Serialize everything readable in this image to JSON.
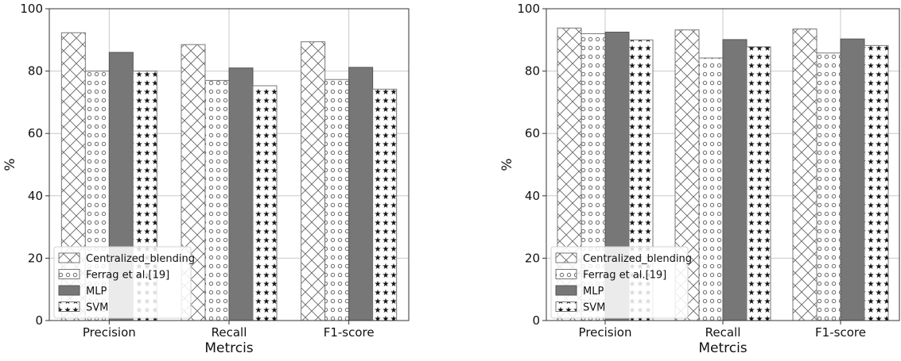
{
  "chart_data": [
    {
      "type": "bar",
      "title": "",
      "xlabel": "Metrcis",
      "ylabel": "%",
      "ylim": [
        0,
        100
      ],
      "yticks": [
        "0",
        "20",
        "40",
        "60",
        "80",
        "100"
      ],
      "grid": true,
      "legend_position": "lower-left",
      "categories": [
        "Precision",
        "Recall",
        "F1-score"
      ],
      "series": [
        {
          "name": "Centralized_blending",
          "pattern": "crosshatch",
          "color": "#555555",
          "values": [
            92.3,
            88.5,
            89.4
          ]
        },
        {
          "name": "Ferrag et al.[19]",
          "pattern": "circles",
          "color": "#555555",
          "values": [
            80.0,
            77.0,
            77.3
          ]
        },
        {
          "name": "MLP",
          "pattern": "solid",
          "color": "#777777",
          "values": [
            86.0,
            81.0,
            81.2
          ]
        },
        {
          "name": "SVM",
          "pattern": "stars",
          "color": "#555555",
          "values": [
            80.0,
            75.3,
            74.2
          ]
        }
      ]
    },
    {
      "type": "bar",
      "title": "",
      "xlabel": "Metrcis",
      "ylabel": "%",
      "ylim": [
        0,
        100
      ],
      "yticks": [
        "0",
        "20",
        "40",
        "60",
        "80",
        "100"
      ],
      "grid": true,
      "legend_position": "lower-left",
      "categories": [
        "Precision",
        "Recall",
        "F1-score"
      ],
      "series": [
        {
          "name": "Centralized_blending",
          "pattern": "crosshatch",
          "color": "#555555",
          "values": [
            93.8,
            93.2,
            93.5
          ]
        },
        {
          "name": "Ferrag et al.[19]",
          "pattern": "circles",
          "color": "#555555",
          "values": [
            92.0,
            84.2,
            85.8
          ]
        },
        {
          "name": "MLP",
          "pattern": "solid",
          "color": "#777777",
          "values": [
            92.5,
            90.1,
            90.3
          ]
        },
        {
          "name": "SVM",
          "pattern": "stars",
          "color": "#555555",
          "values": [
            90.0,
            87.8,
            88.2
          ]
        }
      ]
    }
  ]
}
